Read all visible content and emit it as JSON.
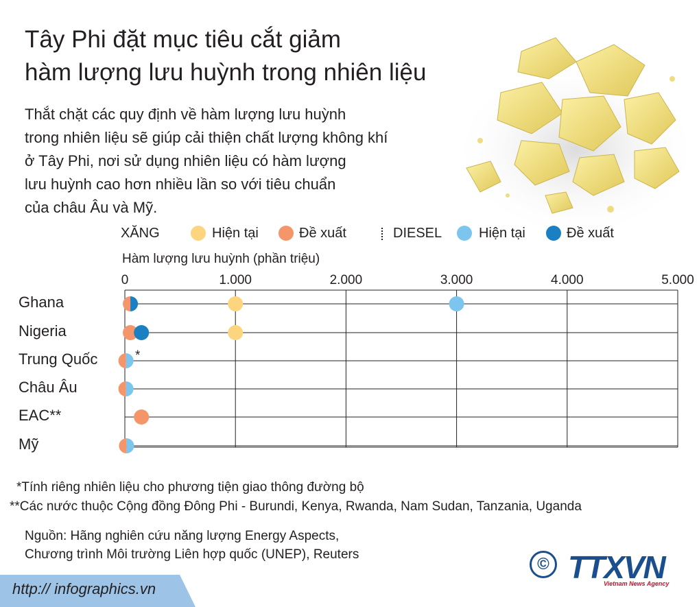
{
  "title_lines": [
    "Tây Phi đặt mục tiêu cắt giảm",
    "hàm lượng lưu huỳnh trong nhiên liệu"
  ],
  "description_lines": [
    "Thắt chặt các quy định về hàm lượng lưu huỳnh",
    "trong nhiên liệu sẽ giúp cải thiện chất lượng không khí",
    "ở Tây Phi, nơi sử dụng nhiên liệu có hàm lượng",
    "lưu huỳnh cao hơn nhiều lần so với tiêu chuẩn",
    "của châu Âu và Mỹ."
  ],
  "legend": {
    "petrol_label": "XĂNG",
    "petrol_current": "Hiện tại",
    "petrol_proposed": "Đề xuất",
    "diesel_label": "DIESEL",
    "diesel_current": "Hiện tại",
    "diesel_proposed": "Đề xuất"
  },
  "chart_data": {
    "type": "scatter",
    "xlabel": "Hàm lượng lưu huỳnh (phần triệu)",
    "xlim": [
      0,
      5000
    ],
    "x_ticks": [
      "0",
      "1.000",
      "2.000",
      "3.000",
      "4.000",
      "5.000"
    ],
    "x_tick_values": [
      0,
      1000,
      2000,
      3000,
      4000,
      5000
    ],
    "categories": [
      "Ghana",
      "Nigeria",
      "Trung Quốc",
      "Châu Âu",
      "EAC**",
      "Mỹ"
    ],
    "category_marks": [
      "",
      "",
      "*",
      "",
      "",
      ""
    ],
    "grid": true,
    "series": [
      {
        "name": "XĂNG Hiện tại",
        "color": "#fdd57e",
        "values": [
          1000,
          1000,
          null,
          null,
          null,
          null
        ]
      },
      {
        "name": "XĂNG Đề xuất",
        "color": "#f4956a",
        "values": [
          50,
          50,
          10,
          10,
          150,
          10
        ]
      },
      {
        "name": "DIESEL Hiện tại",
        "color": "#7cc5ee",
        "values": [
          3000,
          null,
          10,
          10,
          null,
          15
        ]
      },
      {
        "name": "DIESEL Đề xuất",
        "color": "#1b7fc4",
        "values": [
          50,
          150,
          null,
          null,
          null,
          null
        ]
      }
    ]
  },
  "notes": [
    "*Tính riêng nhiên liệu cho phương tiện giao thông đường bộ",
    "**Các nước thuộc Cộng đồng Đông Phi - Burundi, Kenya, Rwanda, Nam Sudan, Tanzania, Uganda"
  ],
  "source_lines": [
    "Nguồn: Hãng nghiên cứu năng lượng Energy Aspects,",
    "Chương trình Môi trường Liên hợp quốc (UNEP), Reuters"
  ],
  "footer": {
    "url": "http:// infographics.vn",
    "copyright_symbol": "©",
    "logo": "TTXVN",
    "logo_sub": "Vietnam News Agency"
  },
  "colors": {
    "petrol_current": "#fdd57e",
    "petrol_proposed": "#f4956a",
    "diesel_current": "#7cc5ee",
    "diesel_proposed": "#1b7fc4",
    "footer_band": "#9dc3e6",
    "brand_blue": "#1a4e8c",
    "brand_red": "#c8102e"
  },
  "icons": {
    "sulfur_image": "sulfur-crystals-image",
    "copyright": "copyright-icon"
  }
}
